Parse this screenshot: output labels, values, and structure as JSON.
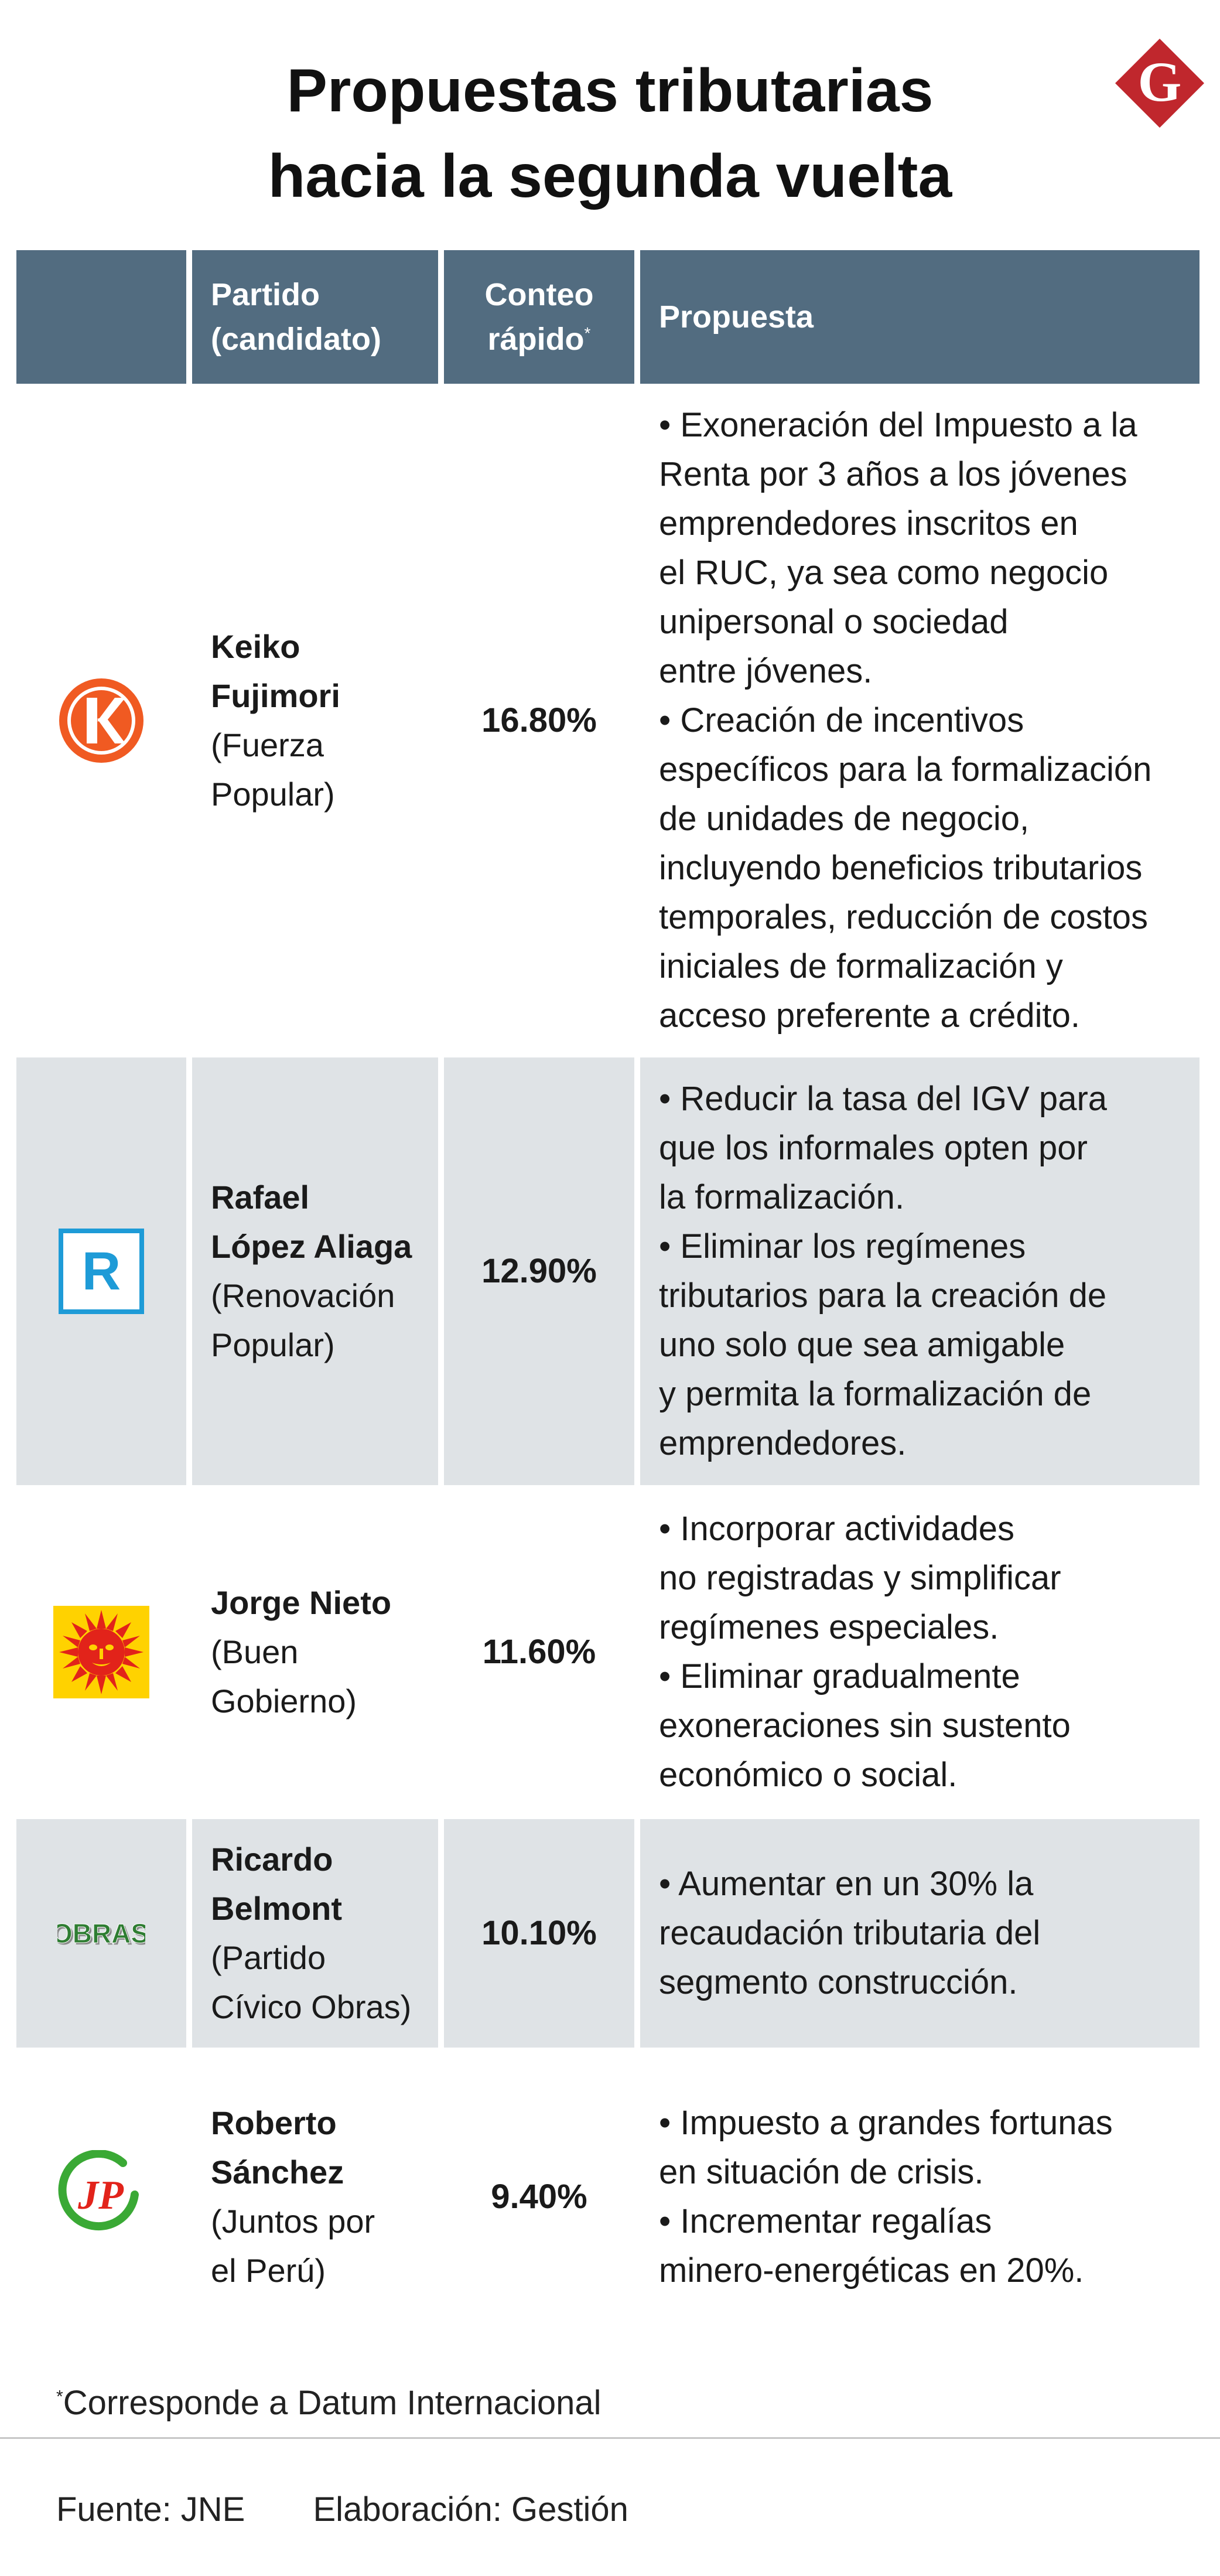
{
  "title": {
    "line1": "Propuestas tributarias",
    "line2": "hacia la segunda vuelta"
  },
  "brand": {
    "logo_icon": "gestion-g-logo",
    "letter": "G",
    "color": "#c0272d"
  },
  "table": {
    "headers": {
      "logo": "",
      "partido_line1": "Partido",
      "partido_line2": "(candidato)",
      "conteo_line1": "Conteo",
      "conteo_line2": "rápido",
      "conteo_mark": "*",
      "propuesta": "Propuesta"
    },
    "rows": [
      {
        "logo_icon": "fuerza-popular-k-logo",
        "candidate_lines": [
          "Keiko",
          "Fujimori"
        ],
        "party_lines": [
          "(Fuerza",
          "Popular)"
        ],
        "conteo": "16.80%",
        "proposal_lines": [
          "• Exoneración del Impuesto a la",
          "Renta por 3 años a los jóvenes",
          "emprendedores inscritos en",
          "el RUC, ya sea como negocio",
          "unipersonal o sociedad",
          "entre jóvenes.",
          "• Creación de incentivos",
          "específicos para la formalización",
          "de unidades de negocio,",
          "incluyendo beneficios tributarios",
          "temporales, reducción de costos",
          "iniciales de formalización y",
          "acceso preferente a crédito."
        ]
      },
      {
        "logo_icon": "renovacion-popular-r-logo",
        "logo_letter": "R",
        "candidate_lines": [
          "Rafael",
          "López Aliaga"
        ],
        "party_lines": [
          "(Renovación",
          "Popular)"
        ],
        "conteo": "12.90%",
        "proposal_lines": [
          "• Reducir la tasa del IGV para",
          "que los informales opten por",
          "la formalización.",
          "• Eliminar los regímenes",
          "tributarios para la creación de",
          "uno solo que sea amigable",
          "y permita la formalización de",
          "emprendedores."
        ]
      },
      {
        "logo_icon": "buen-gobierno-sun-logo",
        "candidate_lines": [
          "Jorge Nieto"
        ],
        "party_lines": [
          "(Buen",
          "Gobierno)"
        ],
        "conteo": "11.60%",
        "proposal_lines": [
          "• Incorporar actividades",
          "no registradas y simplificar",
          "regímenes especiales.",
          "• Eliminar gradualmente",
          "exoneraciones sin sustento",
          "económico o social."
        ]
      },
      {
        "logo_icon": "obras-logo",
        "logo_text": "OBRAS",
        "candidate_lines": [
          "Ricardo",
          "Belmont"
        ],
        "party_lines": [
          "(Partido",
          "Cívico Obras)"
        ],
        "conteo": "10.10%",
        "proposal_lines": [
          "• Aumentar en un 30% la",
          "recaudación tributaria del",
          "segmento construcción."
        ]
      },
      {
        "logo_icon": "juntos-por-el-peru-jp-logo",
        "logo_text": "JP",
        "candidate_lines": [
          "Roberto",
          "Sánchez"
        ],
        "party_lines": [
          "(Juntos por",
          "el Perú)"
        ],
        "conteo": "9.40%",
        "proposal_lines": [
          "• Impuesto a grandes fortunas",
          "en situación de crisis.",
          "• Incrementar regalías",
          "minero-energéticas en 20%."
        ]
      }
    ]
  },
  "footnote": {
    "mark": "*",
    "text": "Corresponde a Datum Internacional"
  },
  "source": {
    "fuente": "Fuente: JNE",
    "elaboracion": "Elaboración: Gestión"
  },
  "colors": {
    "header_bg": "#526c80",
    "alt_row_bg": "#dfe3e6",
    "fuerza_popular_orange": "#f05a22",
    "renovacion_blue": "#1e9bd7",
    "buen_gobierno_yellow": "#ffd200",
    "buen_gobierno_red": "#e2231a",
    "obras_green": "#2e7d32",
    "jp_green": "#3aa935",
    "jp_red": "#e2231a"
  }
}
